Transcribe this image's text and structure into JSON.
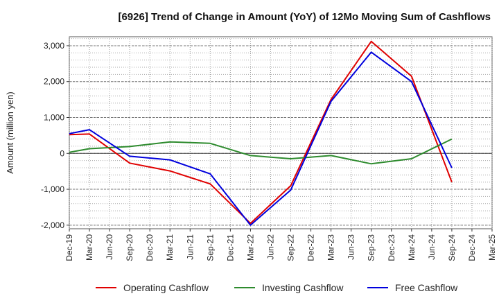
{
  "chart_data": {
    "type": "line",
    "title": "[6926]  Trend of Change in Amount (YoY) of 12Mo Moving Sum of Cashflows",
    "xlabel": "",
    "ylabel": "Amount (million yen)",
    "ylim": [
      -2100,
      3250
    ],
    "yticks": [
      3000,
      2000,
      1000,
      0,
      -1000,
      -2000
    ],
    "ytick_labels": [
      "3,000",
      "2,000",
      "1,000",
      "0",
      "-1,000",
      "-2,000"
    ],
    "categories": [
      "Dec-19",
      "Mar-20",
      "Jun-20",
      "Sep-20",
      "Dec-20",
      "Mar-21",
      "Jun-21",
      "Sep-21",
      "Dec-21",
      "Mar-22",
      "Jun-22",
      "Sep-22",
      "Dec-22",
      "Mar-23",
      "Jun-23",
      "Sep-23",
      "Dec-23",
      "Mar-24",
      "Jun-24",
      "Sep-24",
      "Dec-24",
      "Mar-25"
    ],
    "grid": true,
    "legend_position": "bottom",
    "series": [
      {
        "name": "Operating Cashflow",
        "color": "#e00000",
        "values": [
          520,
          540,
          null,
          -270,
          null,
          -490,
          null,
          -850,
          null,
          -1950,
          null,
          -900,
          null,
          1500,
          null,
          3120,
          null,
          2150,
          null,
          -800,
          null,
          null
        ]
      },
      {
        "name": "Investing Cashflow",
        "color": "#2e8b2e",
        "values": [
          30,
          130,
          null,
          190,
          null,
          320,
          null,
          280,
          null,
          -60,
          null,
          -150,
          null,
          -60,
          null,
          -290,
          null,
          -150,
          null,
          400,
          null,
          null
        ]
      },
      {
        "name": "Free Cashflow",
        "color": "#0000dd",
        "values": [
          550,
          660,
          null,
          -80,
          null,
          -180,
          null,
          -570,
          null,
          -2000,
          null,
          -1020,
          null,
          1450,
          null,
          2820,
          null,
          2000,
          null,
          -400,
          null,
          null
        ]
      }
    ]
  }
}
